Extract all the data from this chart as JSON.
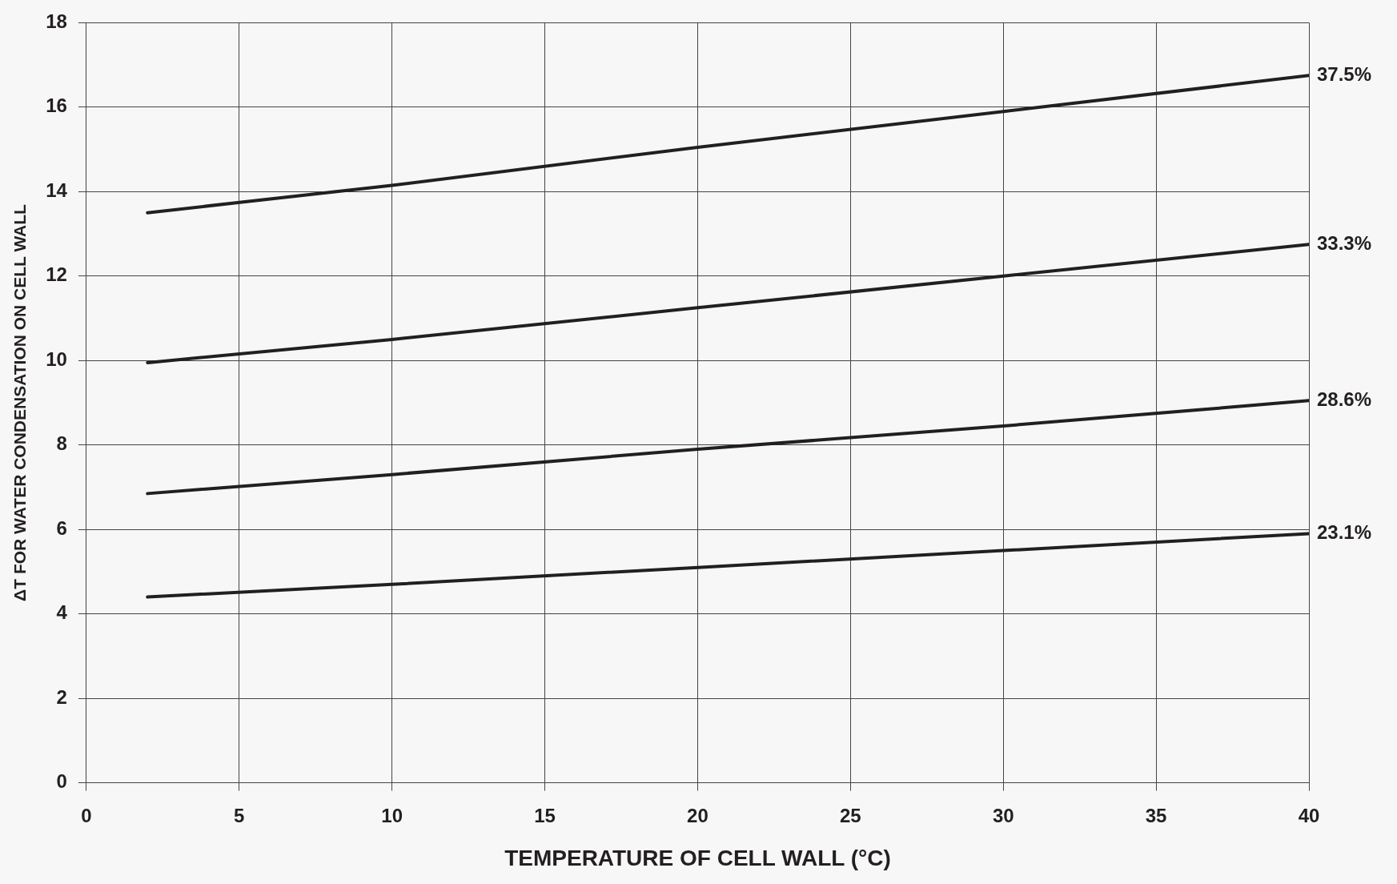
{
  "chart_data": {
    "type": "line",
    "xlabel": "TEMPERATURE OF CELL WALL (°C)",
    "ylabel": "ΔT FOR WATER CONDENSATION ON CELL WALL",
    "x": [
      2,
      10,
      20,
      30,
      40
    ],
    "series": [
      {
        "name": "37.5%",
        "color": "#231f20",
        "values": [
          13.5,
          14.15,
          15.05,
          15.9,
          16.75
        ]
      },
      {
        "name": "33.3%",
        "color": "#231f20",
        "values": [
          9.95,
          10.5,
          11.25,
          12.0,
          12.75
        ]
      },
      {
        "name": "28.6%",
        "color": "#231f20",
        "values": [
          6.85,
          7.3,
          7.9,
          8.45,
          9.05
        ]
      },
      {
        "name": "23.1%",
        "color": "#231f20",
        "values": [
          4.4,
          4.7,
          5.1,
          5.5,
          5.9
        ]
      }
    ],
    "xlim": [
      0,
      40
    ],
    "xticks": [
      0,
      5,
      10,
      15,
      20,
      25,
      30,
      35,
      40
    ],
    "ylim": [
      0,
      18
    ],
    "yticks": [
      0,
      2,
      4,
      6,
      8,
      10,
      12,
      14,
      16,
      18
    ],
    "grid": true,
    "legend": false,
    "marker": "none",
    "line_style": "solid"
  }
}
